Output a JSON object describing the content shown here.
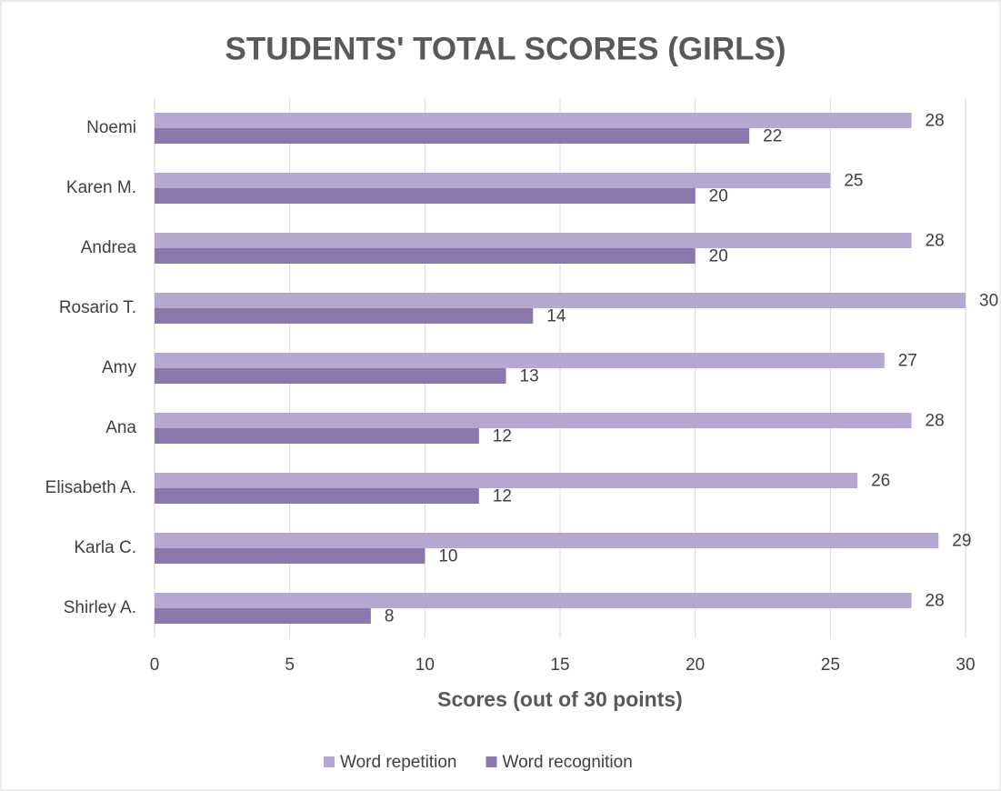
{
  "chart_data": {
    "type": "barh",
    "title": "STUDENTS' TOTAL SCORES (GIRLS)",
    "x_label": "Scores (out of 30 points)",
    "categories": [
      "Noemi",
      "Karen M.",
      "Andrea",
      "Rosario T.",
      "Amy",
      "Ana",
      "Elisabeth A.",
      "Karla C.",
      "Shirley A."
    ],
    "series": [
      {
        "name": "Word repetition",
        "color": "#b4a7d0",
        "values": [
          28,
          25,
          28,
          30,
          27,
          28,
          26,
          29,
          28
        ]
      },
      {
        "name": "Word recognition",
        "color": "#8a77ab",
        "values": [
          22,
          20,
          20,
          14,
          13,
          12,
          12,
          10,
          8
        ]
      }
    ],
    "xlim": [
      0,
      30
    ],
    "xticks": [
      0,
      5,
      10,
      15,
      20,
      25,
      30
    ],
    "grid": true,
    "legend": "bottom"
  }
}
